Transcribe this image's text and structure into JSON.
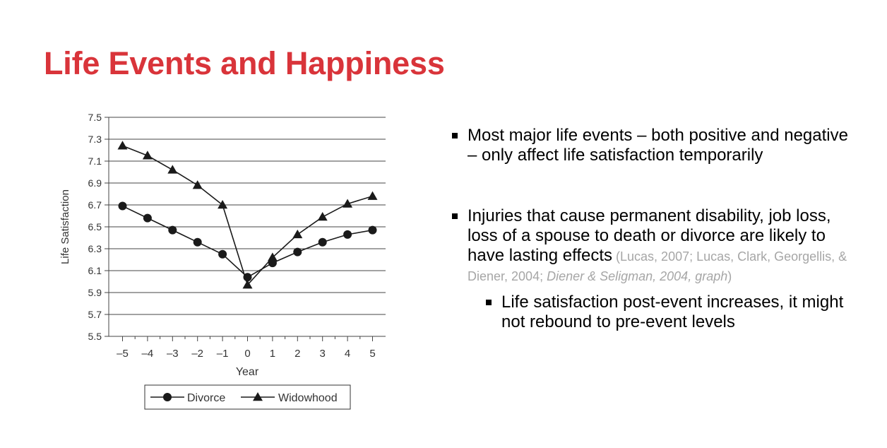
{
  "slide": {
    "title": "Life Events and Happiness"
  },
  "bullets": [
    {
      "text": "Most major life events – both positive and negative – only affect life satisfaction temporarily"
    },
    {
      "text": "Injuries that cause permanent disability, job loss, loss of a spouse to death or divorce are likely to have lasting effects",
      "citation_plain": " (Lucas, 2007; Lucas, Clark, Georgellis, & Diener, 2004; ",
      "citation_italic": "Diener & Seligman, 2004, graph",
      "citation_end": ")"
    },
    {
      "text": "Life satisfaction post-event increases, it might not rebound to pre-event levels"
    }
  ],
  "chart_data": {
    "type": "line",
    "xlabel": "Year",
    "ylabel": "Life Satisfaction",
    "x": [
      -5,
      -4,
      -3,
      -2,
      -1,
      0,
      1,
      2,
      3,
      4,
      5
    ],
    "x_tick_labels": [
      "–5",
      "–4",
      "–3",
      "–2",
      "–1",
      "0",
      "1",
      "2",
      "3",
      "4",
      "5"
    ],
    "ylim": [
      5.5,
      7.5
    ],
    "y_ticks": [
      5.5,
      5.7,
      5.9,
      6.1,
      6.3,
      6.5,
      6.7,
      6.9,
      7.1,
      7.3,
      7.5
    ],
    "y_tick_labels": [
      "5.5",
      "5.7",
      "5.9",
      "6.1",
      "6.3",
      "6.5",
      "6.7",
      "6.9",
      "7.1",
      "7.3",
      "7.5"
    ],
    "grid": "horizontal",
    "legend_position": "bottom",
    "series": [
      {
        "name": "Divorce",
        "marker": "circle",
        "values": [
          6.69,
          6.58,
          6.47,
          6.36,
          6.25,
          6.04,
          6.17,
          6.27,
          6.36,
          6.43,
          6.47
        ]
      },
      {
        "name": "Widowhood",
        "marker": "triangle",
        "values": [
          7.24,
          7.15,
          7.02,
          6.88,
          6.7,
          5.97,
          6.22,
          6.43,
          6.59,
          6.71,
          6.78
        ]
      }
    ],
    "colors": {
      "line": "#1a1a1a",
      "grid": "#444444",
      "text": "#333333"
    }
  }
}
